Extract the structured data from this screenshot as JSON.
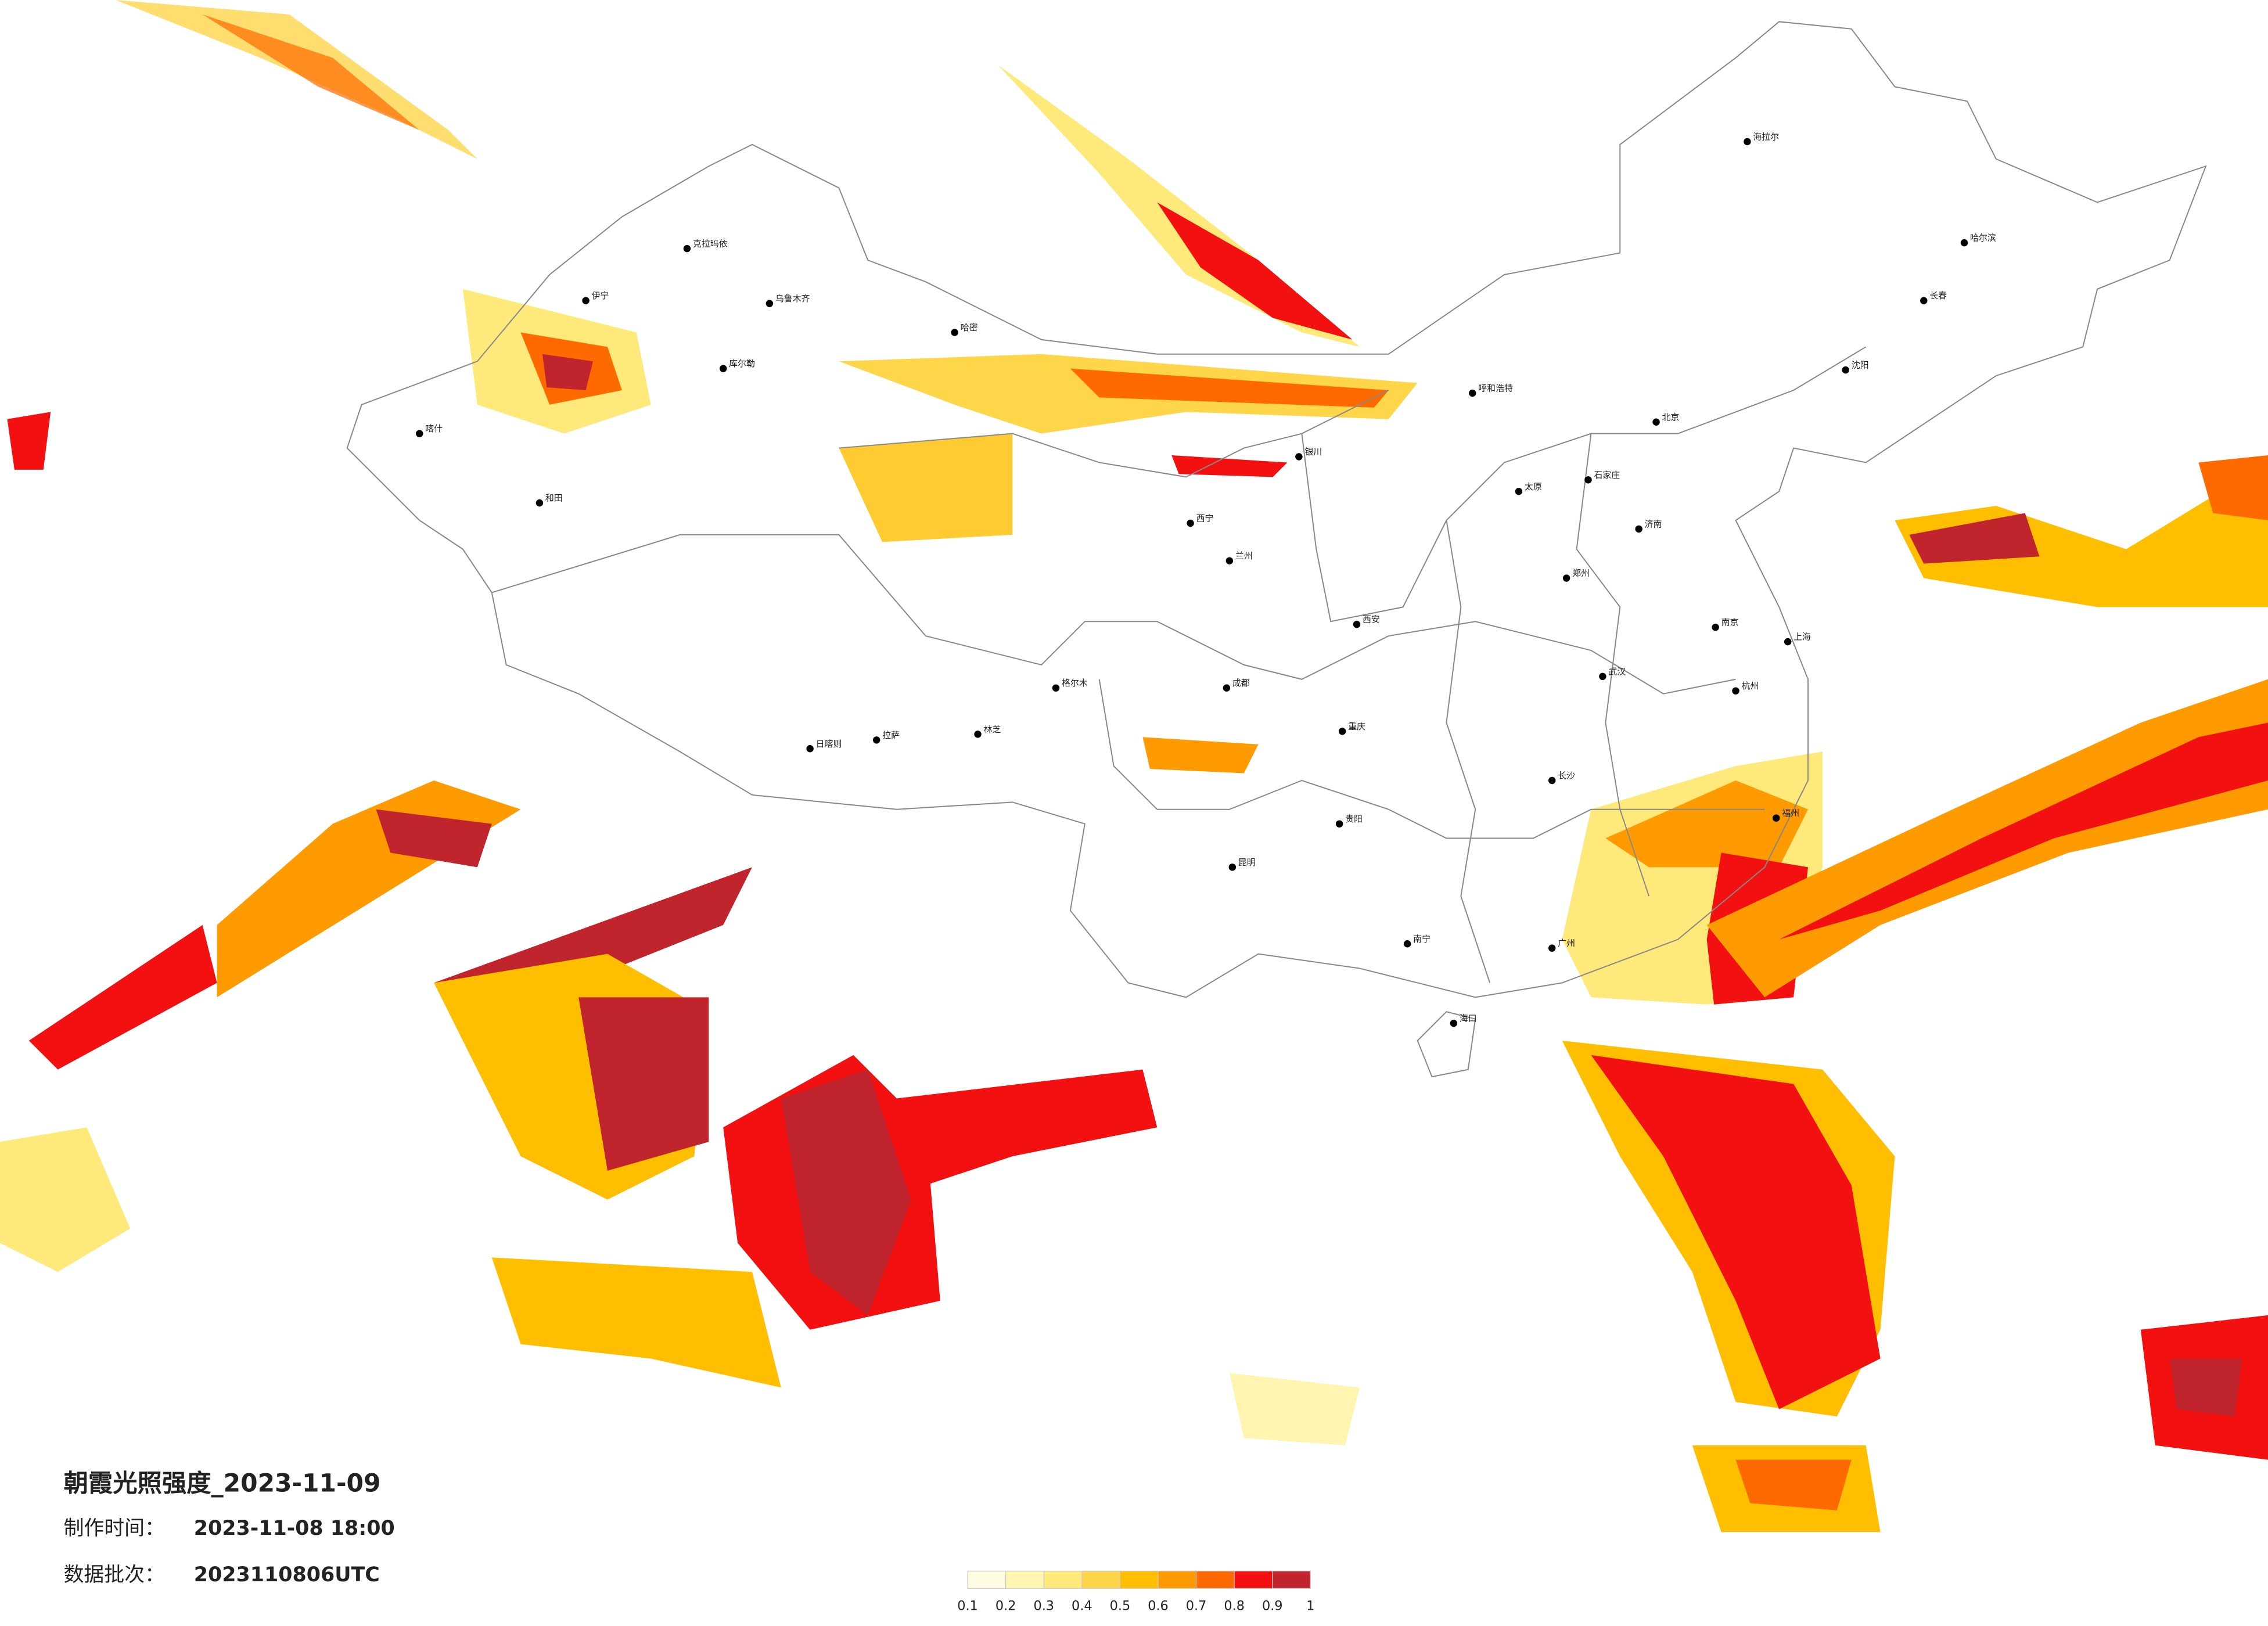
{
  "header": {
    "title": "朝霞光照强度_2023-11-09"
  },
  "info": [
    {
      "label": "制作时间：",
      "value": "2023-11-08 18:00"
    },
    {
      "label": "数据批次：",
      "value": "2023110806UTC"
    }
  ],
  "legend": {
    "colors": [
      "#fffbe0",
      "#fff5b0",
      "#ffe97a",
      "#ffd54a",
      "#ffbe00",
      "#ff9a00",
      "#ff6a00",
      "#f21010",
      "#c0242c"
    ],
    "ticks": [
      0.1,
      0.2,
      0.3,
      0.4,
      0.5,
      0.6,
      0.7,
      0.8,
      0.9,
      1
    ]
  },
  "cities": [
    "克拉玛依",
    "乌鲁木齐",
    "伊宁",
    "哈密",
    "库尔勒",
    "喀什",
    "和田",
    "日喀则",
    "拉萨",
    "林芝",
    "格尔木",
    "西宁",
    "兰州",
    "银川",
    "呼和浩特",
    "北京",
    "石家庄",
    "太原",
    "西安",
    "郑州",
    "武汉",
    "成都",
    "重庆",
    "长沙",
    "贵阳",
    "昆明",
    "南宁",
    "广州",
    "福州",
    "上海",
    "南京",
    "杭州",
    "济南",
    "沈阳",
    "长春",
    "哈尔滨",
    "海拉尔",
    "海口"
  ]
}
